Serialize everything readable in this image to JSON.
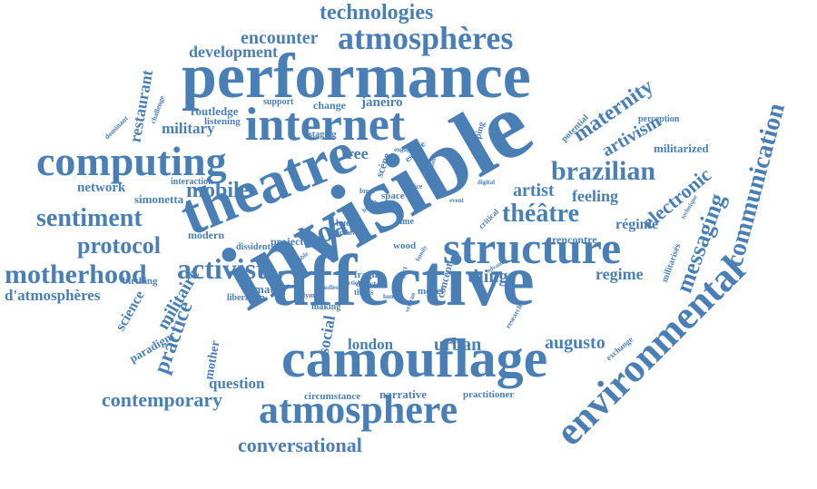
{
  "cloud": {
    "color": "#4a7fb5",
    "background": "#ffffff",
    "words": [
      "invisible",
      "affective",
      "performance",
      "theatre",
      "camouflage",
      "internet",
      "structure",
      "computing",
      "atmosphere",
      "environmental",
      "atmosphères",
      "activist",
      "brazilian",
      "motherhood",
      "sentiment",
      "communication",
      "technologies",
      "protocol",
      "mobile",
      "théâtre",
      "messaging",
      "electronic",
      "maternity",
      "conversational",
      "contemporary",
      "encounter",
      "development",
      "boal",
      "artivism",
      "practice",
      "urban",
      "augusto",
      "london",
      "militaire",
      "regime",
      "régime",
      "feeling",
      "artist",
      "thing",
      "social",
      "question",
      "d'atmosphères",
      "restaurant",
      "network",
      "science",
      "paradigm",
      "military",
      "janeiro",
      "tree",
      "militarized",
      "narrative",
      "circumstance",
      "practitioner",
      "routledge",
      "mother",
      "simonetta",
      "support",
      "change",
      "perception",
      "militarisés",
      "project",
      "concept",
      "model",
      "fragile",
      "liberation",
      "climate",
      "rencontre",
      "making",
      "listening",
      "staging",
      "modern",
      "birthing",
      "dominant",
      "challenge",
      "potential",
      "mapping",
      "interaction",
      "olympic",
      "exchange",
      "research",
      "space",
      "scène",
      "bueno",
      "dissident",
      "wood",
      "thesis",
      "archival",
      "article",
      "studies",
      "director",
      "force",
      "voice",
      "time",
      "espace",
      "engage",
      "digital",
      "critical",
      "human",
      "family",
      "advance",
      "event",
      "account",
      "veteran",
      "health",
      "enable",
      "technique",
      "object"
    ]
  }
}
